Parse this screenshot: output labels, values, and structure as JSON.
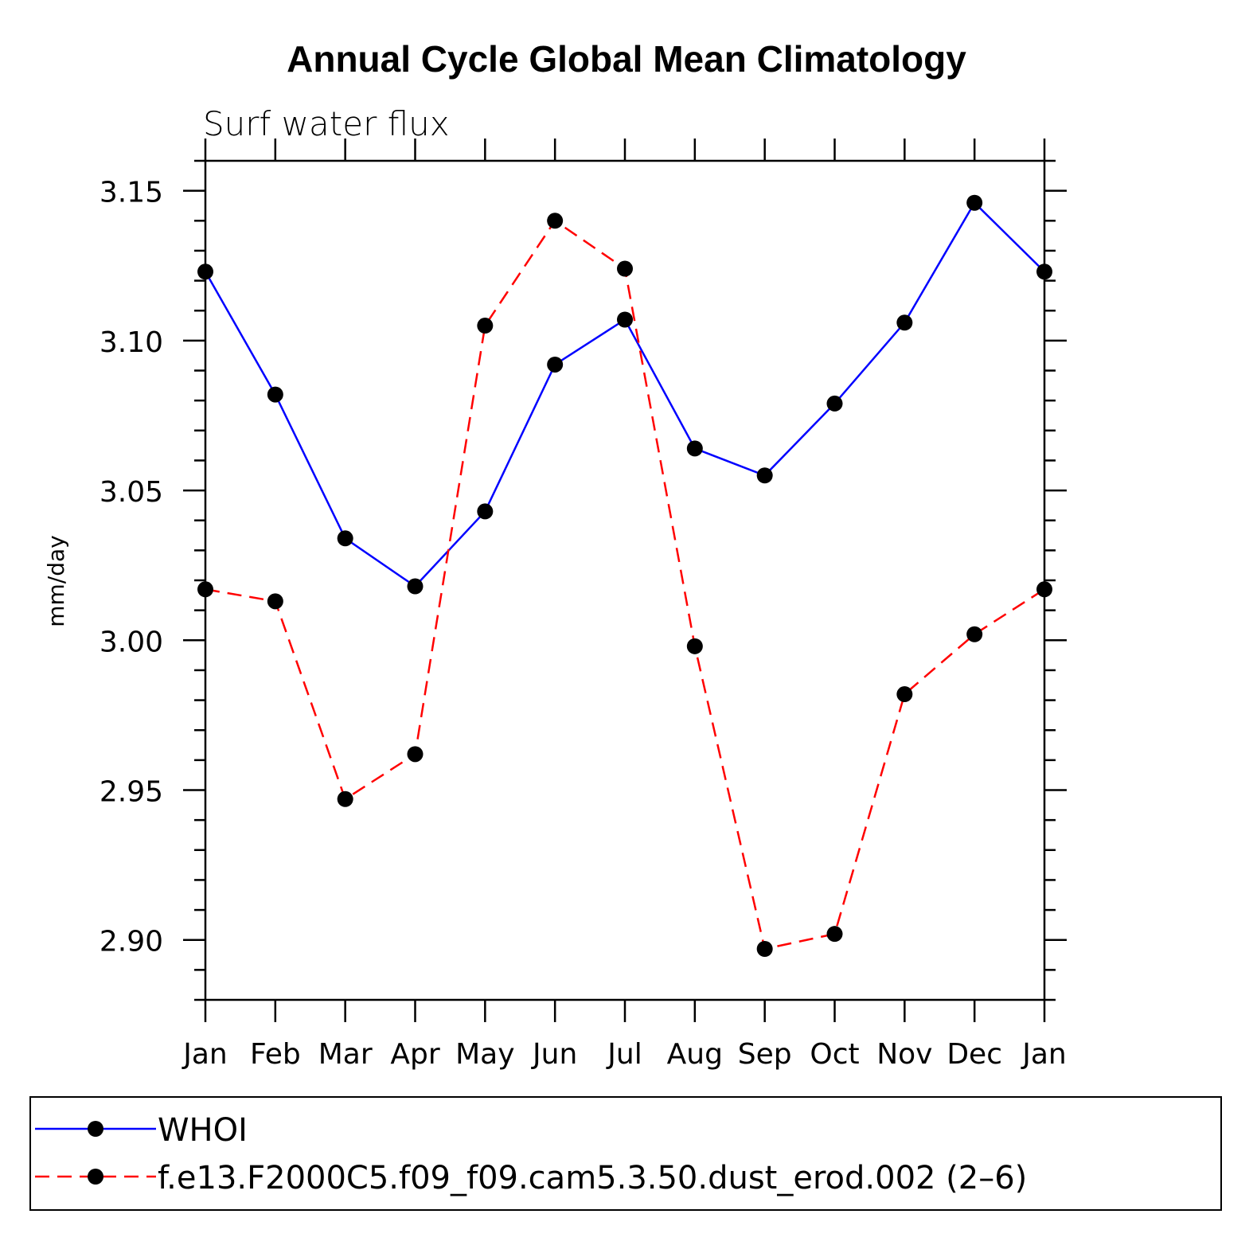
{
  "chart_data": {
    "type": "line",
    "title": "Annual Cycle Global Mean Climatology",
    "subtitle": "Surf water flux",
    "ylabel": "mm/day",
    "xlabel": "",
    "categories": [
      "Jan",
      "Feb",
      "Mar",
      "Apr",
      "May",
      "Jun",
      "Jul",
      "Aug",
      "Sep",
      "Oct",
      "Nov",
      "Dec",
      "Jan"
    ],
    "ylim": [
      2.88,
      3.16
    ],
    "yticks": [
      "2.90",
      "2.95",
      "3.00",
      "3.05",
      "3.10",
      "3.15"
    ],
    "grid": false,
    "legend_position": "bottom",
    "series": [
      {
        "name": "WHOI",
        "color": "#0000ff",
        "dash": "solid",
        "marker": "filled-circle",
        "values": [
          3.123,
          3.082,
          3.034,
          3.018,
          3.043,
          3.092,
          3.107,
          3.064,
          3.055,
          3.079,
          3.106,
          3.146,
          3.123
        ]
      },
      {
        "name": "f.e13.F2000C5.f09_f09.cam5.3.50.dust_erod.002 (2–6)",
        "color": "#ff0000",
        "dash": "dashed",
        "marker": "filled-circle",
        "values": [
          3.017,
          3.013,
          2.947,
          2.962,
          3.105,
          3.14,
          3.124,
          2.998,
          2.897,
          2.902,
          2.982,
          3.002,
          3.017
        ]
      }
    ]
  }
}
